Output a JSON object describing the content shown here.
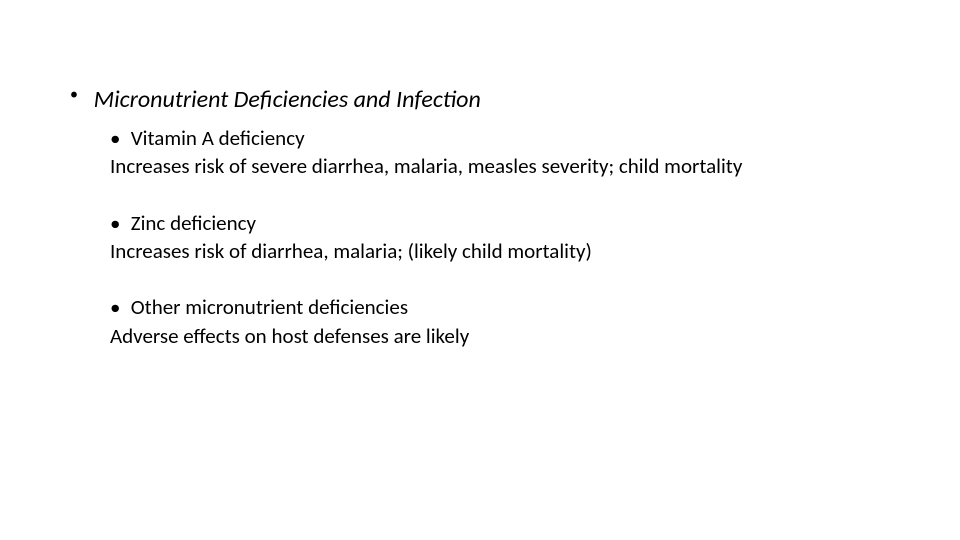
{
  "slide": {
    "main_title": "Micronutrient Deficiencies and Infection",
    "bullet_char": "•",
    "items": [
      {
        "title": "Vitamin A deficiency",
        "description": "Increases risk of severe diarrhea, malaria, measles severity; child mortality"
      },
      {
        "title": "Zinc deficiency",
        "description": "Increases risk of diarrhea, malaria; (likely child mortality)"
      },
      {
        "title": "Other micronutrient deficiencies",
        "description": "Adverse effects on host defenses are likely"
      }
    ]
  },
  "style": {
    "background_color": "#ffffff",
    "text_color": "#000000",
    "title_fontsize": 24,
    "body_fontsize": 21,
    "font_family": "Calibri"
  }
}
